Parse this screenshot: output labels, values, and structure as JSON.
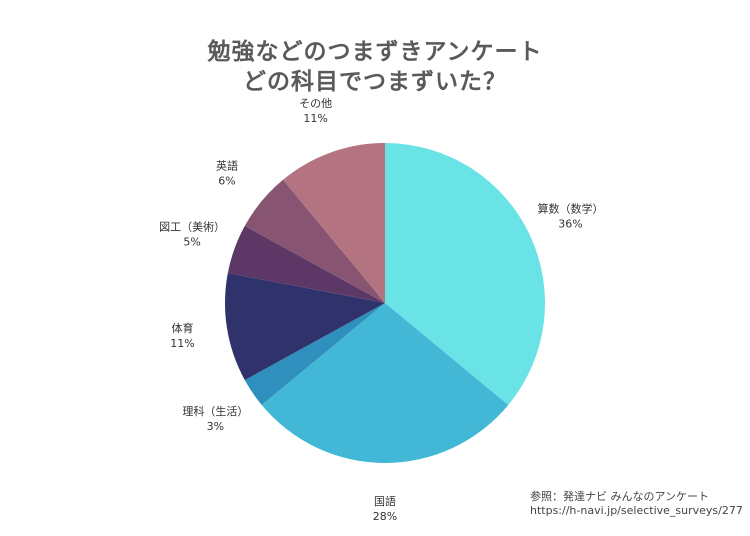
{
  "title_line1": "勉強などのつまずきアンケート",
  "title_line2": "どの科目でつまずいた？",
  "source_line1": "参照：発達ナビ みんなのアンケート",
  "source_line2": "https://h-navi.jp/selective_surveys/277",
  "chart_data": {
    "type": "pie",
    "start": "12 o'clock",
    "direction": "clockwise",
    "slices": [
      {
        "label": "算数（数学）",
        "value": 36,
        "value_label": "36%",
        "color": "#6ae3e6"
      },
      {
        "label": "国語",
        "value": 28,
        "value_label": "28%",
        "color": "#43b8d6"
      },
      {
        "label": "理科（生活）",
        "value": 3,
        "value_label": "3%",
        "color": "#2f8fbd"
      },
      {
        "label": "体育",
        "value": 11,
        "value_label": "11%",
        "color": "#30336b"
      },
      {
        "label": "図工（美術）",
        "value": 5,
        "value_label": "5%",
        "color": "#5d3766"
      },
      {
        "label": "英語",
        "value": 6,
        "value_label": "6%",
        "color": "#875472"
      },
      {
        "label": "その他",
        "value": 11,
        "value_label": "11%",
        "color": "#b47380"
      }
    ]
  }
}
